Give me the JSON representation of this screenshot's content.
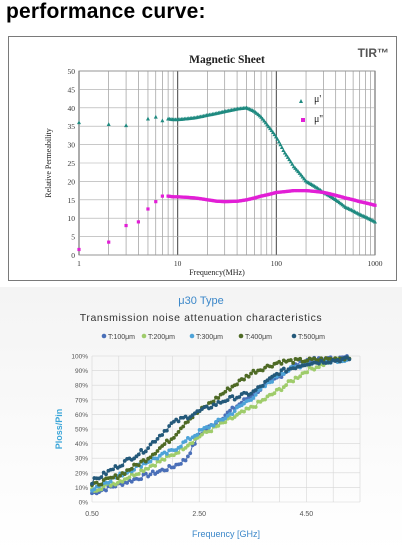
{
  "page": {
    "heading": "performance curve:"
  },
  "chart_data": [
    {
      "type": "scatter",
      "title": "Magnetic Sheet",
      "brand": "TIR™",
      "xlabel": "Frequency(MHz)",
      "ylabel": "Relative Permeability",
      "xscale": "log",
      "xlim": [
        1,
        1000
      ],
      "ylim": [
        0,
        50
      ],
      "xticks": [
        "1",
        "10",
        "100",
        "1000"
      ],
      "yticks": [
        "0",
        "5",
        "10",
        "15",
        "20",
        "25",
        "30",
        "35",
        "40",
        "45",
        "50"
      ],
      "grid": true,
      "legend_position": "right",
      "colors": {
        "mu_prime": "#1f8a80",
        "mu_double_prime": "#e21fd6"
      },
      "series": [
        {
          "name": "μ'",
          "x": [
            1,
            2,
            3,
            5,
            6,
            7,
            8,
            9,
            10,
            12,
            15,
            20,
            25,
            30,
            40,
            50,
            60,
            70,
            80,
            100,
            120,
            150,
            200,
            300,
            400,
            500,
            700,
            1000
          ],
          "y": [
            36,
            35.5,
            35.2,
            37,
            37.5,
            36.5,
            37,
            36.8,
            36.8,
            37,
            37.3,
            38,
            38.5,
            39,
            39.7,
            40,
            39,
            37.5,
            35.5,
            32,
            28,
            24,
            20,
            17,
            15,
            13,
            11,
            9
          ]
        },
        {
          "name": "μ''",
          "x": [
            1,
            2,
            3,
            4,
            5,
            6,
            7,
            8,
            9,
            10,
            12,
            15,
            20,
            25,
            30,
            40,
            50,
            70,
            100,
            150,
            200,
            300,
            400,
            500,
            700,
            1000
          ],
          "y": [
            1.5,
            3.5,
            8,
            9,
            12.5,
            14.5,
            16,
            16,
            15.8,
            15.8,
            15.7,
            15.5,
            15,
            14.6,
            14.5,
            14.6,
            15,
            16,
            17,
            17.5,
            17.5,
            17,
            16.2,
            15.5,
            14.5,
            13.5
          ]
        }
      ]
    },
    {
      "type": "line",
      "title": "μ30 Type",
      "subtitle": "Transmission noise attenuation characteristics",
      "xlabel": "Frequency [GHz]",
      "ylabel": "Ploss/Pin",
      "xlim": [
        0.5,
        5.5
      ],
      "ylim": [
        0,
        100
      ],
      "xticks": [
        "0.50",
        "2.50",
        "4.50"
      ],
      "yticks": [
        "0%",
        "10%",
        "20%",
        "30%",
        "40%",
        "50%",
        "60%",
        "70%",
        "80%",
        "90%",
        "100%"
      ],
      "grid": true,
      "legend_position": "top",
      "colors": {
        "title": "#3b87c9",
        "ylabel": "#3aa5d8",
        "xlabel": "#3b87c9"
      },
      "series": [
        {
          "name": "T:100μm",
          "color": "#4a6fb8",
          "x": [
            0.5,
            1.0,
            1.5,
            2.0,
            2.25,
            2.5,
            3.0,
            3.5,
            4.0,
            4.25,
            4.5,
            5.0,
            5.3
          ],
          "y": [
            6,
            12,
            18,
            24,
            29,
            46,
            60,
            74,
            86,
            93,
            97,
            98,
            99
          ]
        },
        {
          "name": "T:200μm",
          "color": "#9fcc6b",
          "x": [
            0.5,
            1.0,
            1.5,
            2.0,
            2.5,
            3.0,
            3.5,
            4.0,
            4.5,
            5.0,
            5.3
          ],
          "y": [
            8,
            14,
            23,
            32,
            45,
            55,
            65,
            77,
            90,
            97,
            98
          ]
        },
        {
          "name": "T:300μm",
          "color": "#4ea3d8",
          "x": [
            0.5,
            1.0,
            1.5,
            2.0,
            2.5,
            3.0,
            3.5,
            4.0,
            4.5,
            5.0,
            5.3
          ],
          "y": [
            9,
            18,
            27,
            35,
            48,
            58,
            72,
            88,
            95,
            97,
            98
          ]
        },
        {
          "name": "T:400μm",
          "color": "#4e6a25",
          "x": [
            0.5,
            1.0,
            1.5,
            2.0,
            2.25,
            2.5,
            3.0,
            3.5,
            4.0,
            4.5,
            5.0,
            5.3
          ],
          "y": [
            11,
            18,
            29,
            44,
            55,
            62,
            76,
            89,
            96,
            97,
            98,
            99
          ]
        },
        {
          "name": "T:500μm",
          "color": "#24597a",
          "x": [
            0.5,
            1.0,
            1.5,
            2.0,
            2.5,
            3.0,
            3.5,
            4.0,
            4.5,
            5.0,
            5.3
          ],
          "y": [
            14,
            25,
            36,
            54,
            62,
            70,
            75,
            89,
            95,
            97,
            98
          ]
        }
      ]
    }
  ]
}
